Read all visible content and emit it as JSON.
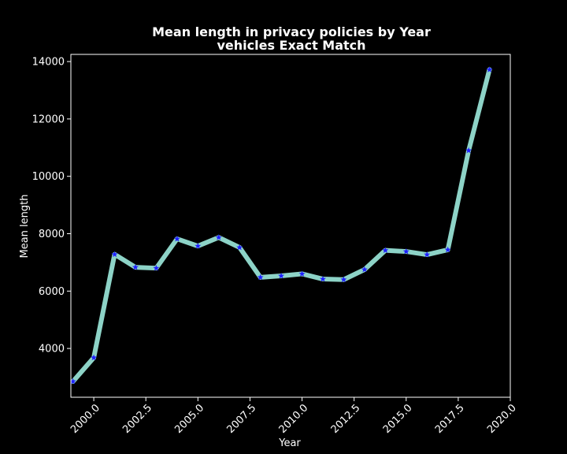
{
  "chart_data": {
    "type": "line",
    "title_line1": "Mean length in privacy policies by Year",
    "title_line2": "vehicles Exact Match",
    "xlabel": "Year",
    "ylabel": "Mean length",
    "xlim": [
      1998.9,
      2020.0
    ],
    "ylim": [
      2300,
      14250
    ],
    "x_ticks": [
      2000.0,
      2002.5,
      2005.0,
      2007.5,
      2010.0,
      2012.5,
      2015.0,
      2017.5,
      2020.0
    ],
    "x_tick_labels": [
      "2000.0",
      "2002.5",
      "2005.0",
      "2007.5",
      "2010.0",
      "2012.5",
      "2015.0",
      "2017.5",
      "2020.0"
    ],
    "y_ticks": [
      4000,
      6000,
      8000,
      10000,
      12000,
      14000
    ],
    "y_tick_labels": [
      "4000",
      "6000",
      "8000",
      "10000",
      "12000",
      "14000"
    ],
    "grid": false,
    "line_color": "#8dd3c7",
    "marker_color": "#1f1fff",
    "marker": "star",
    "series": [
      {
        "x": [
          1999,
          2000,
          2001,
          2002,
          2003,
          2004,
          2005,
          2006,
          2007,
          2008,
          2009,
          2010,
          2011,
          2012,
          2013,
          2014,
          2015,
          2016,
          2017,
          2018,
          2019
        ],
        "values": [
          2850,
          3680,
          7280,
          6830,
          6800,
          7820,
          7570,
          7870,
          7520,
          6480,
          6530,
          6600,
          6420,
          6400,
          6750,
          7420,
          7380,
          7270,
          7440,
          10900,
          13720
        ]
      }
    ]
  }
}
